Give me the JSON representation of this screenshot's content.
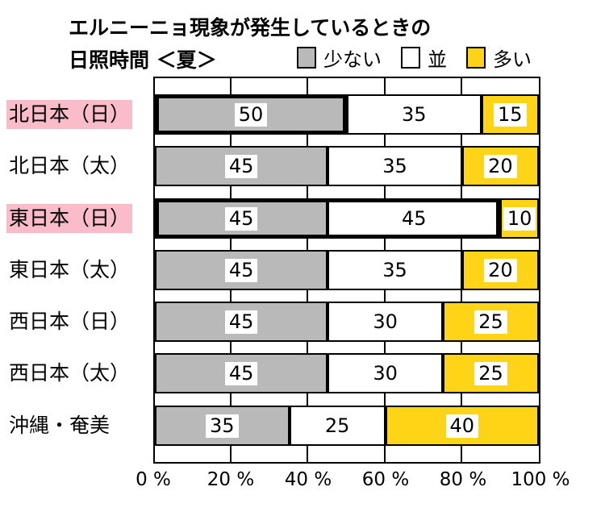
{
  "title": {
    "line1": "エルニーニョ現象が発生しているときの",
    "line2": "日照時間 ＜夏＞"
  },
  "legend": [
    {
      "key": "sukunai",
      "label": "少ない",
      "color": "#b9b9b9"
    },
    {
      "key": "nami",
      "label": "並",
      "color": "#ffffff"
    },
    {
      "key": "ooi",
      "label": "多い",
      "color": "#ffd417"
    }
  ],
  "chart_data": {
    "type": "bar",
    "orientation": "horizontal",
    "stacked": true,
    "unit": "%",
    "title": "エルニーニョ現象が発生しているときの日照時間 ＜夏＞",
    "categories": [
      "北日本（日）",
      "北日本（太）",
      "東日本（日）",
      "東日本（太）",
      "西日本（日）",
      "西日本（太）",
      "沖縄・奄美"
    ],
    "series": [
      {
        "key": "sukunai",
        "name": "少ない",
        "color": "#b9b9b9",
        "values": [
          50,
          45,
          45,
          45,
          45,
          45,
          35
        ]
      },
      {
        "key": "nami",
        "name": "並",
        "color": "#ffffff",
        "values": [
          35,
          35,
          45,
          35,
          30,
          30,
          25
        ]
      },
      {
        "key": "ooi",
        "name": "多い",
        "color": "#ffd417",
        "values": [
          15,
          20,
          10,
          20,
          25,
          25,
          40
        ]
      }
    ],
    "xlim": [
      0,
      100
    ],
    "x_ticks": [
      "0 %",
      "20 %",
      "40 %",
      "60 %",
      "80 %",
      "100 %"
    ],
    "grid": "vertical lines every 20%",
    "legend_position": "top-right",
    "highlighted_category_indices": [
      0,
      2
    ],
    "emphasis_outlines": [
      {
        "row": 0,
        "from_percent": 0,
        "to_percent": 50
      },
      {
        "row": 2,
        "from_percent": 0,
        "to_percent": 90
      }
    ]
  },
  "colors": {
    "highlight_pink": "#f9bcc8",
    "bar_gray": "#b9b9b9",
    "bar_white": "#ffffff",
    "bar_yellow": "#ffd417",
    "border_black": "#000000",
    "background": "#ffffff"
  }
}
